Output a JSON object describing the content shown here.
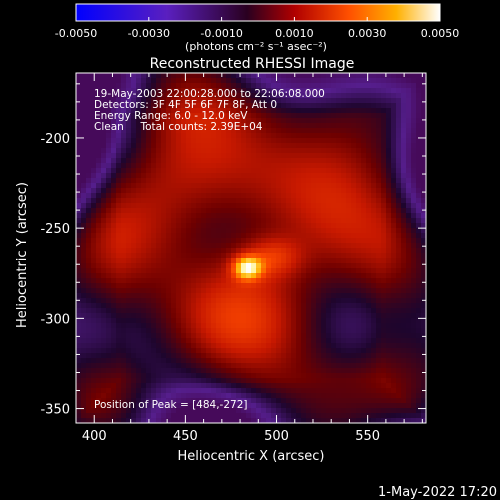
{
  "colorbar": {
    "ticks": [
      "-0.0050",
      "-0.0030",
      "-0.0010",
      "0.0010",
      "0.0030",
      "0.0050"
    ],
    "values": [
      -0.005,
      -0.003,
      -0.001,
      0.001,
      0.003,
      0.005
    ],
    "range": [
      -0.005,
      0.005
    ],
    "unit_label": "(photons cm⁻² s⁻¹ asec⁻²)",
    "colors": [
      "#0000ff",
      "#5a1fbf",
      "#2a0020",
      "#b00000",
      "#ff5000",
      "#ffb000",
      "#ffffff"
    ]
  },
  "title": "Reconstructed RHESSI Image",
  "annotations": {
    "time_range": "19-May-2003 22:00:28.000 to 22:06:08.000",
    "detectors": "Detectors: 3F 4F 5F 6F 7F 8F, Att 0",
    "energy_range": "Energy Range: 6.0 - 12.0 keV",
    "method_counts": "Clean     Total counts: 2.39E+04",
    "peak_position": "Position of Peak = [484,-272]"
  },
  "axes": {
    "xlabel": "Heliocentric X (arcsec)",
    "ylabel": "Heliocentric Y (arcsec)",
    "xlim": [
      390,
      582
    ],
    "ylim": [
      -358,
      -164
    ],
    "xticks": [
      400,
      450,
      500,
      550
    ],
    "yticks": [
      -200,
      -250,
      -300,
      -350
    ],
    "xtick_labels": [
      "400",
      "450",
      "500",
      "550"
    ],
    "ytick_labels": [
      "-200",
      "-250",
      "-300",
      "-350"
    ]
  },
  "peak": {
    "x": 484,
    "y": -272
  },
  "footer_date": "1-May-2022 17:20"
}
